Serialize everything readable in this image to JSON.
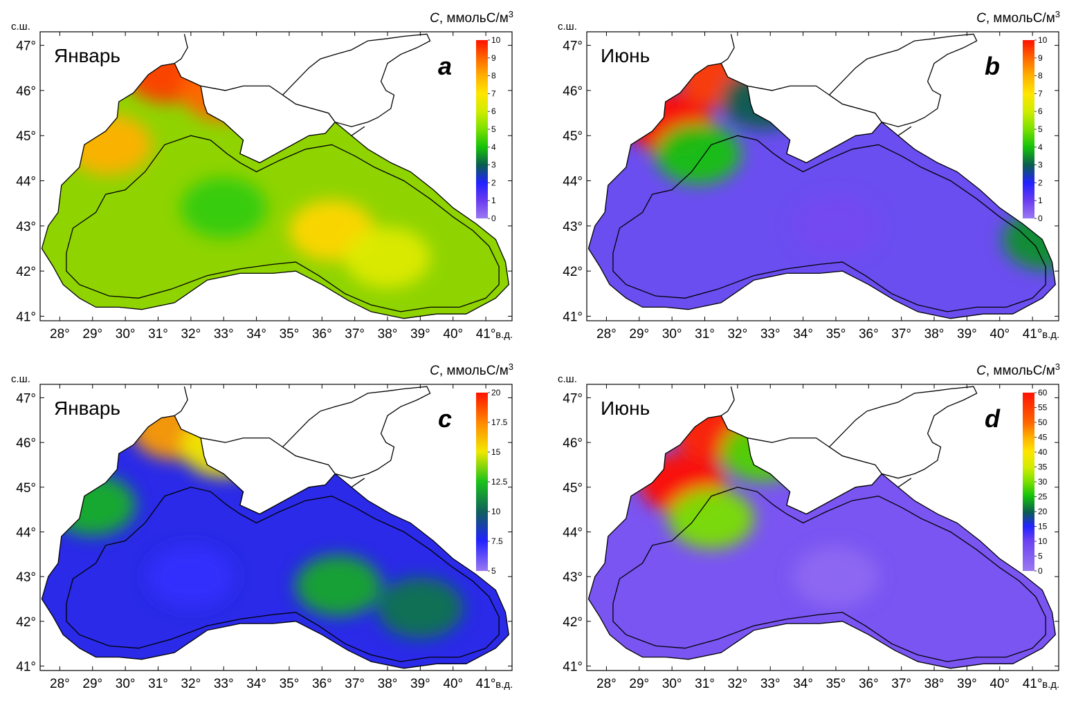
{
  "figure": {
    "lat_unit_label": "с.ш.",
    "lon_unit_label": "в.д.",
    "lat_ticks": [
      "41°",
      "42°",
      "43°",
      "44°",
      "45°",
      "46°",
      "47°"
    ],
    "lon_ticks": [
      "28°",
      "29°",
      "30°",
      "31°",
      "32°",
      "33°",
      "34°",
      "35°",
      "36°",
      "37°",
      "38°",
      "39°",
      "40°",
      "41°"
    ],
    "colorbar_title_var": "C",
    "colorbar_title_rest": ", ммольС/м",
    "colorbar_title_sup": "3"
  },
  "chart_data": [
    {
      "type": "heatmap",
      "panel": "a",
      "month": "Январь",
      "lon_range": [
        27.4,
        41.8
      ],
      "lat_range": [
        40.9,
        47.3
      ],
      "colorbar": {
        "min": 0,
        "max": 10,
        "ticks": [
          "0",
          "1",
          "2",
          "3",
          "4",
          "5",
          "6",
          "7",
          "8",
          "9",
          "10"
        ]
      },
      "hotspots": [
        {
          "lon": 31.3,
          "lat": 46.4,
          "value": 9.5
        },
        {
          "lon": 33.0,
          "lat": 46.0,
          "value": 9.0
        },
        {
          "lon": 29.5,
          "lat": 44.8,
          "value": 8.0
        },
        {
          "lon": 36.3,
          "lat": 42.9,
          "value": 7.3
        },
        {
          "lon": 38.0,
          "lat": 42.3,
          "value": 6.3
        },
        {
          "lon": 33.0,
          "lat": 43.4,
          "value": 4.3
        }
      ]
    },
    {
      "type": "heatmap",
      "panel": "b",
      "month": "Июнь",
      "lon_range": [
        27.4,
        41.8
      ],
      "lat_range": [
        40.9,
        47.3
      ],
      "colorbar": {
        "min": 0,
        "max": 10,
        "ticks": [
          "0",
          "1",
          "2",
          "3",
          "4",
          "5",
          "6",
          "7",
          "8",
          "9",
          "10"
        ]
      },
      "hotspots": [
        {
          "lon": 29.9,
          "lat": 45.3,
          "value": 10
        },
        {
          "lon": 31.5,
          "lat": 46.3,
          "value": 9.5
        },
        {
          "lon": 30.8,
          "lat": 44.6,
          "value": 4.0
        },
        {
          "lon": 32.8,
          "lat": 45.8,
          "value": 3.0
        },
        {
          "lon": 35.0,
          "lat": 43.0,
          "value": 0.8
        },
        {
          "lon": 41.4,
          "lat": 42.7,
          "value": 3.5
        }
      ]
    },
    {
      "type": "heatmap",
      "panel": "c",
      "month": "Январь",
      "lon_range": [
        27.4,
        41.8
      ],
      "lat_range": [
        40.9,
        47.3
      ],
      "colorbar": {
        "min": 5,
        "max": 20,
        "ticks": [
          "5",
          "7.5",
          "10",
          "12.5",
          "15",
          "17.5",
          "20"
        ]
      },
      "hotspots": [
        {
          "lon": 31.5,
          "lat": 46.3,
          "value": 17.0
        },
        {
          "lon": 33.0,
          "lat": 45.9,
          "value": 15.0
        },
        {
          "lon": 29.0,
          "lat": 44.6,
          "value": 12.0
        },
        {
          "lon": 36.5,
          "lat": 42.8,
          "value": 11.8
        },
        {
          "lon": 39.0,
          "lat": 42.3,
          "value": 10.5
        },
        {
          "lon": 32.0,
          "lat": 43.0,
          "value": 7.2
        }
      ]
    },
    {
      "type": "heatmap",
      "panel": "d",
      "month": "Июнь",
      "lon_range": [
        27.4,
        41.8
      ],
      "lat_range": [
        40.9,
        47.3
      ],
      "colorbar": {
        "min": 0,
        "max": 60,
        "ticks": [
          "0",
          "5",
          "10",
          "15",
          "20",
          "25",
          "30",
          "35",
          "40",
          "45",
          "50",
          "55",
          "60"
        ]
      },
      "hotspots": [
        {
          "lon": 30.3,
          "lat": 45.1,
          "value": 60
        },
        {
          "lon": 31.3,
          "lat": 46.3,
          "value": 58
        },
        {
          "lon": 31.2,
          "lat": 44.3,
          "value": 30
        },
        {
          "lon": 32.8,
          "lat": 45.8,
          "value": 28
        },
        {
          "lon": 35.0,
          "lat": 43.0,
          "value": 3
        }
      ]
    }
  ]
}
